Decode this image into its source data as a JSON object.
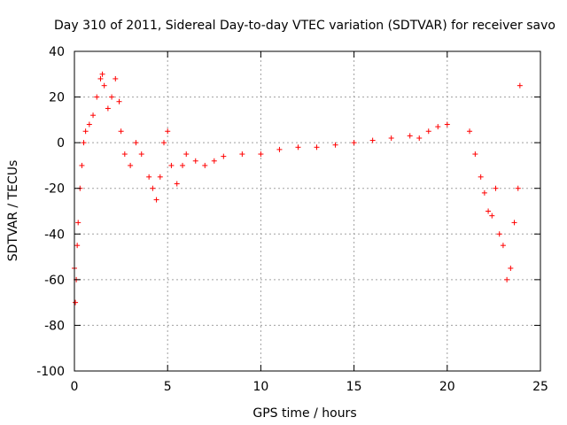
{
  "chart_data": {
    "type": "scatter",
    "title": "Day 310 of 2011, Sidereal Day-to-day VTEC variation (SDTVAR) for receiver savo",
    "xlabel": "GPS time / hours",
    "ylabel": "SDTVAR / TECUs",
    "xlim": [
      0,
      25
    ],
    "ylim": [
      -100,
      40
    ],
    "xticks": [
      0,
      5,
      10,
      15,
      20,
      25
    ],
    "yticks": [
      -100,
      -80,
      -60,
      -40,
      -20,
      0,
      20,
      40
    ],
    "grid": true,
    "marker": "+",
    "series": [
      {
        "name": "SDTVAR",
        "color": "#ff0000",
        "x": [
          0.0,
          0.05,
          0.1,
          0.15,
          0.2,
          0.3,
          0.4,
          0.5,
          0.6,
          0.8,
          1.0,
          1.2,
          1.4,
          1.5,
          1.6,
          1.8,
          2.0,
          2.2,
          2.4,
          2.5,
          2.7,
          3.0,
          3.3,
          3.6,
          4.0,
          4.2,
          4.4,
          4.6,
          4.8,
          5.0,
          5.2,
          5.5,
          5.8,
          6.0,
          6.5,
          7.0,
          7.5,
          8.0,
          9.0,
          10.0,
          11.0,
          12.0,
          13.0,
          14.0,
          15.0,
          16.0,
          17.0,
          18.0,
          18.5,
          19.0,
          19.5,
          20.0,
          21.2,
          21.5,
          21.8,
          22.0,
          22.2,
          22.4,
          22.6,
          22.8,
          23.0,
          23.2,
          23.4,
          23.6,
          23.8,
          23.9
        ],
        "y": [
          -55,
          -70,
          -60,
          -45,
          -35,
          -20,
          -10,
          0,
          5,
          8,
          12,
          20,
          28,
          30,
          25,
          15,
          20,
          28,
          18,
          5,
          -5,
          -10,
          0,
          -5,
          -15,
          -20,
          -25,
          -15,
          0,
          5,
          -10,
          -18,
          -10,
          -5,
          -8,
          -10,
          -8,
          -6,
          -5,
          -5,
          -3,
          -2,
          -2,
          -1,
          0,
          1,
          2,
          3,
          2,
          5,
          7,
          8,
          5,
          -5,
          -15,
          -22,
          -30,
          -32,
          -20,
          -40,
          -45,
          -60,
          -55,
          -35,
          -20,
          25
        ]
      }
    ]
  }
}
